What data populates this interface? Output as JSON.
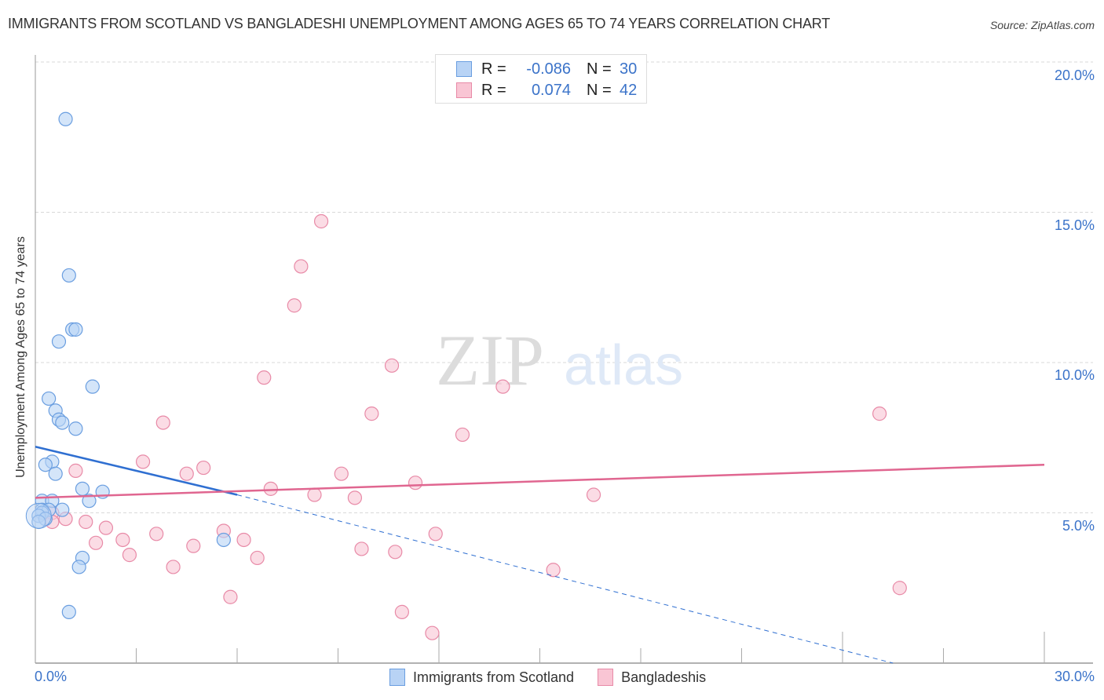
{
  "header": {
    "title": "IMMIGRANTS FROM SCOTLAND VS BANGLADESHI UNEMPLOYMENT AMONG AGES 65 TO 74 YEARS CORRELATION CHART",
    "source": "Source: ZipAtlas.com"
  },
  "legend": {
    "rows": [
      {
        "r_label": "R =",
        "r_value": "-0.086",
        "n_label": "N =",
        "n_value": "30",
        "color": "#b8d3f5",
        "border": "#6a9ee0"
      },
      {
        "r_label": "R =",
        "r_value": "0.074",
        "n_label": "N =",
        "n_value": "42",
        "color": "#f9c5d4",
        "border": "#e88aa7"
      }
    ]
  },
  "axes": {
    "ylabel": "Unemployment Among Ages 65 to 74 years",
    "yticks": [
      "20.0%",
      "15.0%",
      "10.0%",
      "5.0%"
    ],
    "xticks": {
      "min": "0.0%",
      "max": "30.0%"
    }
  },
  "bottom_legend": {
    "series1": "Immigrants from Scotland",
    "series2": "Bangladeshis"
  },
  "watermark": {
    "zip": "ZIP",
    "atlas": "atlas"
  },
  "colors": {
    "blue_fill": "#b8d3f5",
    "blue_stroke": "#6a9ee0",
    "blue_line": "#2f6fd1",
    "pink_fill": "#f9c5d4",
    "pink_stroke": "#e88aa7",
    "pink_line": "#e06690",
    "tick_text": "#3b73c9"
  },
  "chart_data": {
    "type": "scatter",
    "title": "IMMIGRANTS FROM SCOTLAND VS BANGLADESHI UNEMPLOYMENT AMONG AGES 65 TO 74 YEARS CORRELATION CHART",
    "xlabel": "",
    "ylabel": "Unemployment Among Ages 65 to 74 years",
    "xlim": [
      0,
      30
    ],
    "ylim": [
      0,
      20
    ],
    "grid": true,
    "legend_position": "top-center and bottom",
    "series": [
      {
        "name": "Immigrants from Scotland",
        "R": -0.086,
        "N": 30,
        "trend": {
          "x0": 0,
          "y0": 7.2,
          "x1": 6.0,
          "y1": 5.6,
          "dashed_to": {
            "x": 25.5,
            "y": 0.0
          }
        },
        "points": [
          [
            0.9,
            18.1
          ],
          [
            1.0,
            12.9
          ],
          [
            1.1,
            11.1
          ],
          [
            1.2,
            11.1
          ],
          [
            0.7,
            10.7
          ],
          [
            1.7,
            9.2
          ],
          [
            0.4,
            8.8
          ],
          [
            0.6,
            8.4
          ],
          [
            0.7,
            8.1
          ],
          [
            0.8,
            8.0
          ],
          [
            1.2,
            7.8
          ],
          [
            0.5,
            6.7
          ],
          [
            0.3,
            6.6
          ],
          [
            0.6,
            6.3
          ],
          [
            1.4,
            5.8
          ],
          [
            2.0,
            5.7
          ],
          [
            0.2,
            5.4
          ],
          [
            0.5,
            5.4
          ],
          [
            1.6,
            5.4
          ],
          [
            0.2,
            5.1
          ],
          [
            0.4,
            5.1
          ],
          [
            0.2,
            5.0
          ],
          [
            0.1,
            4.9
          ],
          [
            0.3,
            4.8
          ],
          [
            0.8,
            5.1
          ],
          [
            0.1,
            4.7
          ],
          [
            5.6,
            4.1
          ],
          [
            1.4,
            3.5
          ],
          [
            1.3,
            3.2
          ],
          [
            1.0,
            1.7
          ]
        ]
      },
      {
        "name": "Bangladeshis",
        "R": 0.074,
        "N": 42,
        "trend": {
          "x0": 0,
          "y0": 5.5,
          "x1": 30,
          "y1": 6.6
        },
        "points": [
          [
            8.5,
            14.7
          ],
          [
            7.9,
            13.2
          ],
          [
            7.7,
            11.9
          ],
          [
            10.6,
            9.9
          ],
          [
            6.8,
            9.5
          ],
          [
            13.9,
            9.2
          ],
          [
            10.0,
            8.3
          ],
          [
            3.8,
            8.0
          ],
          [
            12.7,
            7.6
          ],
          [
            25.1,
            8.3
          ],
          [
            3.2,
            6.7
          ],
          [
            5.0,
            6.5
          ],
          [
            1.2,
            6.4
          ],
          [
            4.5,
            6.3
          ],
          [
            9.1,
            6.3
          ],
          [
            11.3,
            6.0
          ],
          [
            7.0,
            5.8
          ],
          [
            8.3,
            5.6
          ],
          [
            9.5,
            5.5
          ],
          [
            16.6,
            5.6
          ],
          [
            0.5,
            5.0
          ],
          [
            0.5,
            4.7
          ],
          [
            0.9,
            4.8
          ],
          [
            1.5,
            4.7
          ],
          [
            2.1,
            4.5
          ],
          [
            5.6,
            4.4
          ],
          [
            3.6,
            4.3
          ],
          [
            2.6,
            4.1
          ],
          [
            1.8,
            4.0
          ],
          [
            6.2,
            4.1
          ],
          [
            4.7,
            3.9
          ],
          [
            11.9,
            4.3
          ],
          [
            9.7,
            3.8
          ],
          [
            10.7,
            3.7
          ],
          [
            2.8,
            3.6
          ],
          [
            6.6,
            3.5
          ],
          [
            4.1,
            3.2
          ],
          [
            15.4,
            3.1
          ],
          [
            5.8,
            2.2
          ],
          [
            10.9,
            1.7
          ],
          [
            11.8,
            1.0
          ],
          [
            25.7,
            2.5
          ]
        ]
      }
    ]
  }
}
